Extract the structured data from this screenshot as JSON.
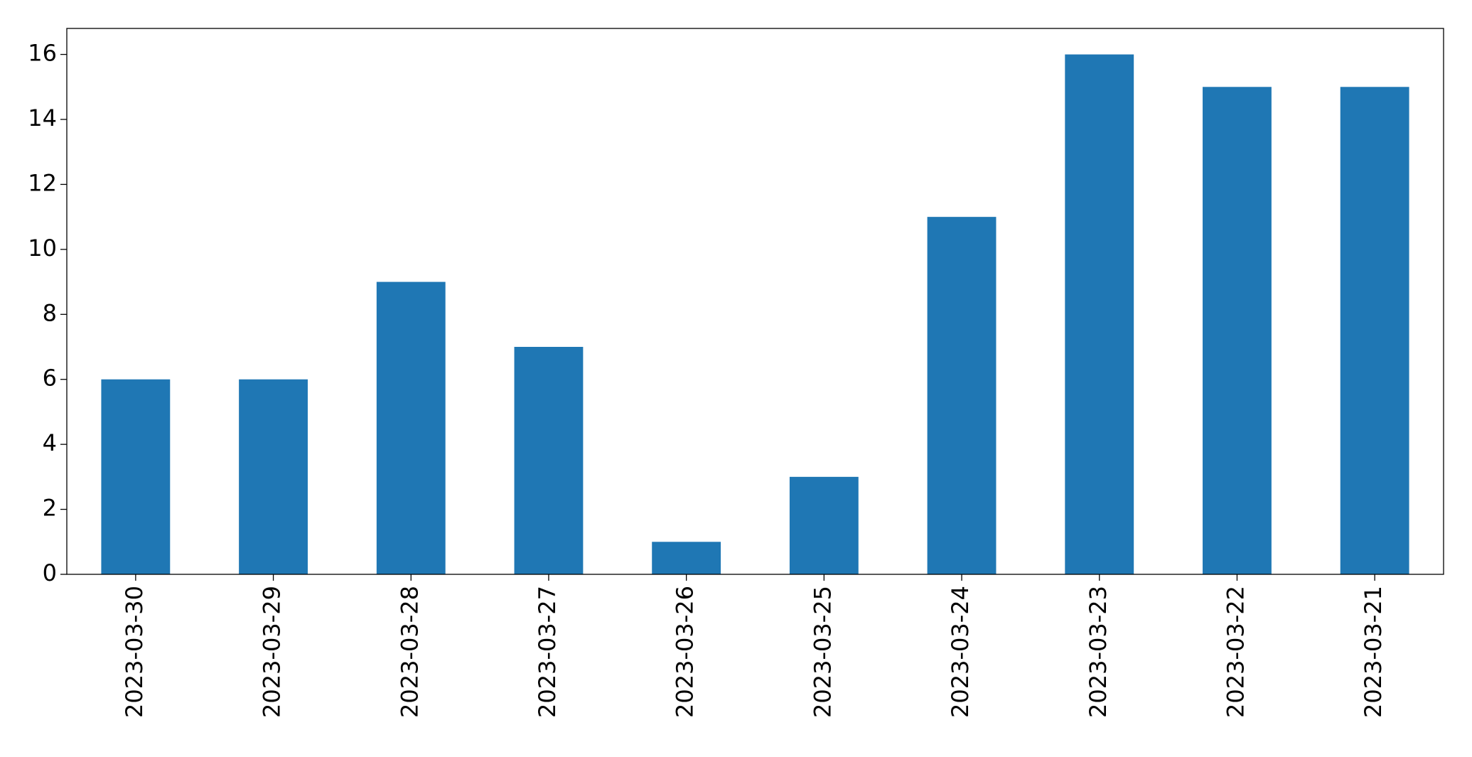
{
  "chart_data": {
    "type": "bar",
    "categories": [
      "2023-03-30",
      "2023-03-29",
      "2023-03-28",
      "2023-03-27",
      "2023-03-26",
      "2023-03-25",
      "2023-03-24",
      "2023-03-23",
      "2023-03-22",
      "2023-03-21"
    ],
    "values": [
      6,
      6,
      9,
      7,
      1,
      3,
      11,
      16,
      15,
      15
    ],
    "color": "#1f77b4",
    "ylim": [
      0,
      16.8
    ],
    "yticks": [
      0,
      2,
      4,
      6,
      8,
      10,
      12,
      14,
      16
    ],
    "grid": false
  }
}
